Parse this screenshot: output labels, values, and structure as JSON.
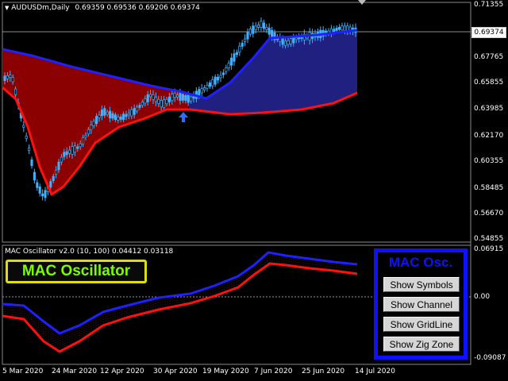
{
  "main_chart": {
    "title": "AUDUSDm,Daily",
    "ohlc": "0.69359 0.69536 0.69206 0.69374",
    "current_price": "0.69374",
    "y_ticks": [
      "0.71355",
      "0.69374",
      "0.67765",
      "0.65855",
      "0.63985",
      "0.62170",
      "0.60355",
      "0.58485",
      "0.56670",
      "0.54855"
    ]
  },
  "oscillator": {
    "title": "MAC Oscillator v2.0 (10, 100) 0.04412 0.03118",
    "y_ticks": [
      "0.06915",
      "0.00",
      "-0.09087"
    ]
  },
  "x_ticks": [
    "5 Mar 2020",
    "24 Mar 2020",
    "12 Apr 2020",
    "30 Apr 2020",
    "19 May 2020",
    "7 Jun 2020",
    "25 Jun 2020",
    "14 Jul 2020"
  ],
  "brand_label": "MAC Oscillator",
  "control_panel": {
    "title": "MAC Osc.",
    "buttons": [
      "Show Symbols",
      "Show Channel",
      "Show GridLine",
      "Show Zig Zone"
    ]
  },
  "colors": {
    "background": "#000000",
    "bull_fill": "#1f2080",
    "bear_fill": "#8b0000",
    "fast_line": "#ff1010",
    "slow_line": "#2020ff",
    "candle": "#40b0ff",
    "panel_accent": "#1010ff",
    "brand_text": "#7CFC00",
    "brand_border": "#e0e000"
  },
  "icons": {
    "signal_arrow": "up-arrow-icon",
    "scroll_marker": "down-triangle-icon"
  }
}
